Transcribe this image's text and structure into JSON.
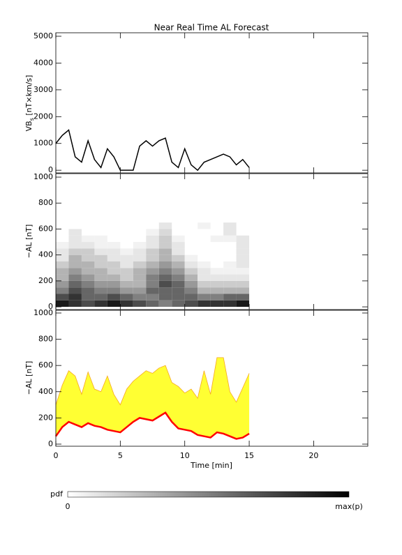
{
  "chart_data": [
    {
      "type": "line",
      "title": "Near Real Time AL Forecast",
      "ylabel_main": "VB",
      "ylabel_sub": "s",
      "ylabel_unit": " [nT×km/s]",
      "xlim": [
        0,
        24.2
      ],
      "xticks": [
        0,
        5,
        10,
        15,
        20
      ],
      "ylim": [
        -100,
        5130
      ],
      "yticks": [
        0,
        1000,
        2000,
        3000,
        4000,
        5000
      ],
      "color": "#000000",
      "x": [
        0,
        0.5,
        1,
        1.5,
        2,
        2.5,
        3,
        3.5,
        4,
        4.5,
        5,
        5.5,
        6,
        6.5,
        7,
        7.5,
        8,
        8.5,
        9,
        9.5,
        10,
        10.5,
        11,
        11.5,
        12,
        12.5,
        13,
        13.5,
        14,
        14.5,
        15
      ],
      "values": [
        1000,
        1300,
        1500,
        500,
        300,
        1100,
        400,
        100,
        800,
        500,
        0,
        0,
        0,
        900,
        1100,
        900,
        1100,
        1200,
        300,
        100,
        800,
        200,
        0,
        300,
        400,
        500,
        600,
        500,
        200,
        400,
        100
      ]
    },
    {
      "type": "heatmap",
      "ylabel": "−AL [nT]",
      "xlim": [
        0,
        24.2
      ],
      "xticks": [
        0,
        5,
        10,
        15,
        20
      ],
      "ylim": [
        -21,
        1027
      ],
      "yticks": [
        0,
        200,
        400,
        600,
        800,
        1000
      ],
      "x_bins": [
        0,
        1,
        2,
        3,
        4,
        5,
        6,
        7,
        8,
        9,
        10,
        11,
        12,
        13,
        14,
        15
      ],
      "y_bins": [
        0,
        50,
        100,
        150,
        200,
        250,
        300,
        350,
        400,
        450,
        500,
        550,
        600,
        650
      ],
      "z": [
        [
          0.9,
          0.8,
          0.7,
          0.8,
          0.9,
          0.8,
          0.7,
          0.6,
          0.5,
          0.6,
          0.7,
          0.8,
          0.8,
          0.8,
          0.9
        ],
        [
          0.7,
          0.8,
          0.6,
          0.6,
          0.7,
          0.6,
          0.5,
          0.5,
          0.6,
          0.6,
          0.6,
          0.5,
          0.5,
          0.6,
          0.6
        ],
        [
          0.5,
          0.7,
          0.6,
          0.5,
          0.5,
          0.4,
          0.4,
          0.6,
          0.6,
          0.6,
          0.5,
          0.3,
          0.3,
          0.3,
          0.3
        ],
        [
          0.4,
          0.6,
          0.5,
          0.4,
          0.4,
          0.3,
          0.3,
          0.5,
          0.7,
          0.6,
          0.4,
          0.2,
          0.2,
          0.2,
          0.2
        ],
        [
          0.3,
          0.5,
          0.4,
          0.3,
          0.3,
          0.2,
          0.3,
          0.5,
          0.6,
          0.5,
          0.3,
          0.1,
          0.1,
          0.1,
          0.1
        ],
        [
          0.3,
          0.4,
          0.3,
          0.3,
          0.2,
          0.2,
          0.3,
          0.4,
          0.5,
          0.4,
          0.2,
          0.1,
          0.05,
          0.05,
          0.05
        ],
        [
          0.2,
          0.3,
          0.3,
          0.2,
          0.2,
          0.1,
          0.2,
          0.3,
          0.4,
          0.3,
          0.1,
          0.05,
          0,
          0.05,
          0.1
        ],
        [
          0.1,
          0.3,
          0.2,
          0.2,
          0.1,
          0.1,
          0.1,
          0.2,
          0.3,
          0.2,
          0.05,
          0,
          0,
          0,
          0.1
        ],
        [
          0.1,
          0.2,
          0.2,
          0.1,
          0.1,
          0.05,
          0.1,
          0.2,
          0.3,
          0.1,
          0,
          0,
          0,
          0,
          0.1
        ],
        [
          0.05,
          0.1,
          0.1,
          0.05,
          0.05,
          0,
          0.05,
          0.1,
          0.2,
          0.1,
          0,
          0,
          0,
          0,
          0.1
        ],
        [
          0,
          0.1,
          0.05,
          0.05,
          0,
          0,
          0,
          0.1,
          0.2,
          0.05,
          0,
          0,
          0.05,
          0.05,
          0.1
        ],
        [
          0,
          0.1,
          0,
          0,
          0,
          0,
          0,
          0.05,
          0.15,
          0,
          0,
          0,
          0,
          0.1,
          0
        ],
        [
          0,
          0,
          0,
          0,
          0,
          0,
          0,
          0,
          0.1,
          0,
          0,
          0.05,
          0,
          0.1,
          0
        ]
      ]
    },
    {
      "type": "band",
      "ylabel": "−AL [nT]",
      "xlabel": "Time [min]",
      "xlim": [
        0,
        24.2
      ],
      "xticks": [
        0,
        5,
        10,
        15,
        20
      ],
      "ylim": [
        -16,
        1021
      ],
      "yticks": [
        0,
        200,
        400,
        600,
        800,
        1000
      ],
      "x": [
        0,
        0.5,
        1,
        1.5,
        2,
        2.5,
        3,
        3.5,
        4,
        4.5,
        5,
        5.5,
        6,
        6.5,
        7,
        7.5,
        8,
        8.5,
        9,
        9.5,
        10,
        10.5,
        11,
        11.5,
        12,
        12.5,
        13,
        13.5,
        14,
        14.5,
        15
      ],
      "series": [
        {
          "color": "#ff0000",
          "values": [
            60,
            130,
            170,
            150,
            130,
            160,
            140,
            130,
            110,
            100,
            90,
            130,
            170,
            200,
            190,
            180,
            210,
            240,
            170,
            120,
            110,
            100,
            70,
            60,
            50,
            90,
            80,
            60,
            40,
            50,
            80
          ]
        },
        {
          "color": "#f5a623",
          "fill": "#ffff33",
          "values": [
            300,
            450,
            560,
            520,
            380,
            550,
            420,
            400,
            520,
            380,
            300,
            420,
            480,
            520,
            560,
            540,
            580,
            600,
            470,
            440,
            390,
            420,
            350,
            560,
            380,
            660,
            660,
            400,
            320,
            430,
            540
          ]
        }
      ]
    }
  ],
  "colorbar": {
    "label": "pdf",
    "min": 0,
    "max_label": "max(p)"
  }
}
